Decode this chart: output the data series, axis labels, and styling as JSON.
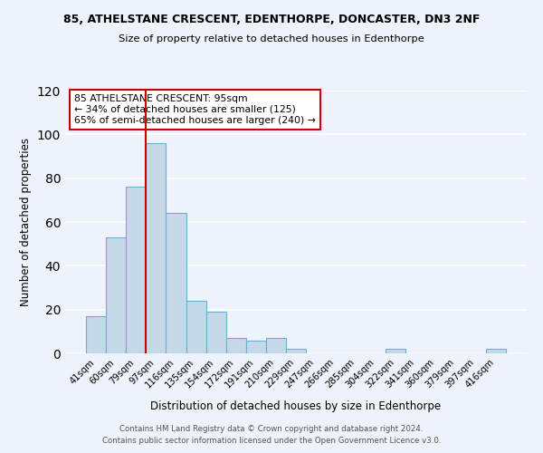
{
  "title1": "85, ATHELSTANE CRESCENT, EDENTHORPE, DONCASTER, DN3 2NF",
  "title2": "Size of property relative to detached houses in Edenthorpe",
  "xlabel": "Distribution of detached houses by size in Edenthorpe",
  "ylabel": "Number of detached properties",
  "bar_labels": [
    "41sqm",
    "60sqm",
    "79sqm",
    "97sqm",
    "116sqm",
    "135sqm",
    "154sqm",
    "172sqm",
    "191sqm",
    "210sqm",
    "229sqm",
    "247sqm",
    "266sqm",
    "285sqm",
    "304sqm",
    "322sqm",
    "341sqm",
    "360sqm",
    "379sqm",
    "397sqm",
    "416sqm"
  ],
  "bar_values": [
    17,
    53,
    76,
    96,
    64,
    24,
    19,
    7,
    6,
    7,
    2,
    0,
    0,
    0,
    0,
    2,
    0,
    0,
    0,
    0,
    2
  ],
  "bar_color": "#c5d8e8",
  "bar_edge_color": "#6baed6",
  "vline_color": "#cc0000",
  "annotation_line1": "85 ATHELSTANE CRESCENT: 95sqm",
  "annotation_line2": "← 34% of detached houses are smaller (125)",
  "annotation_line3": "65% of semi-detached houses are larger (240) →",
  "annotation_box_color": "#ffffff",
  "annotation_box_edgecolor": "#cc0000",
  "ylim": [
    0,
    120
  ],
  "yticks": [
    0,
    20,
    40,
    60,
    80,
    100,
    120
  ],
  "background_color": "#eef2fa",
  "grid_color": "#ffffff",
  "footer1": "Contains HM Land Registry data © Crown copyright and database right 2024.",
  "footer2": "Contains public sector information licensed under the Open Government Licence v3.0."
}
